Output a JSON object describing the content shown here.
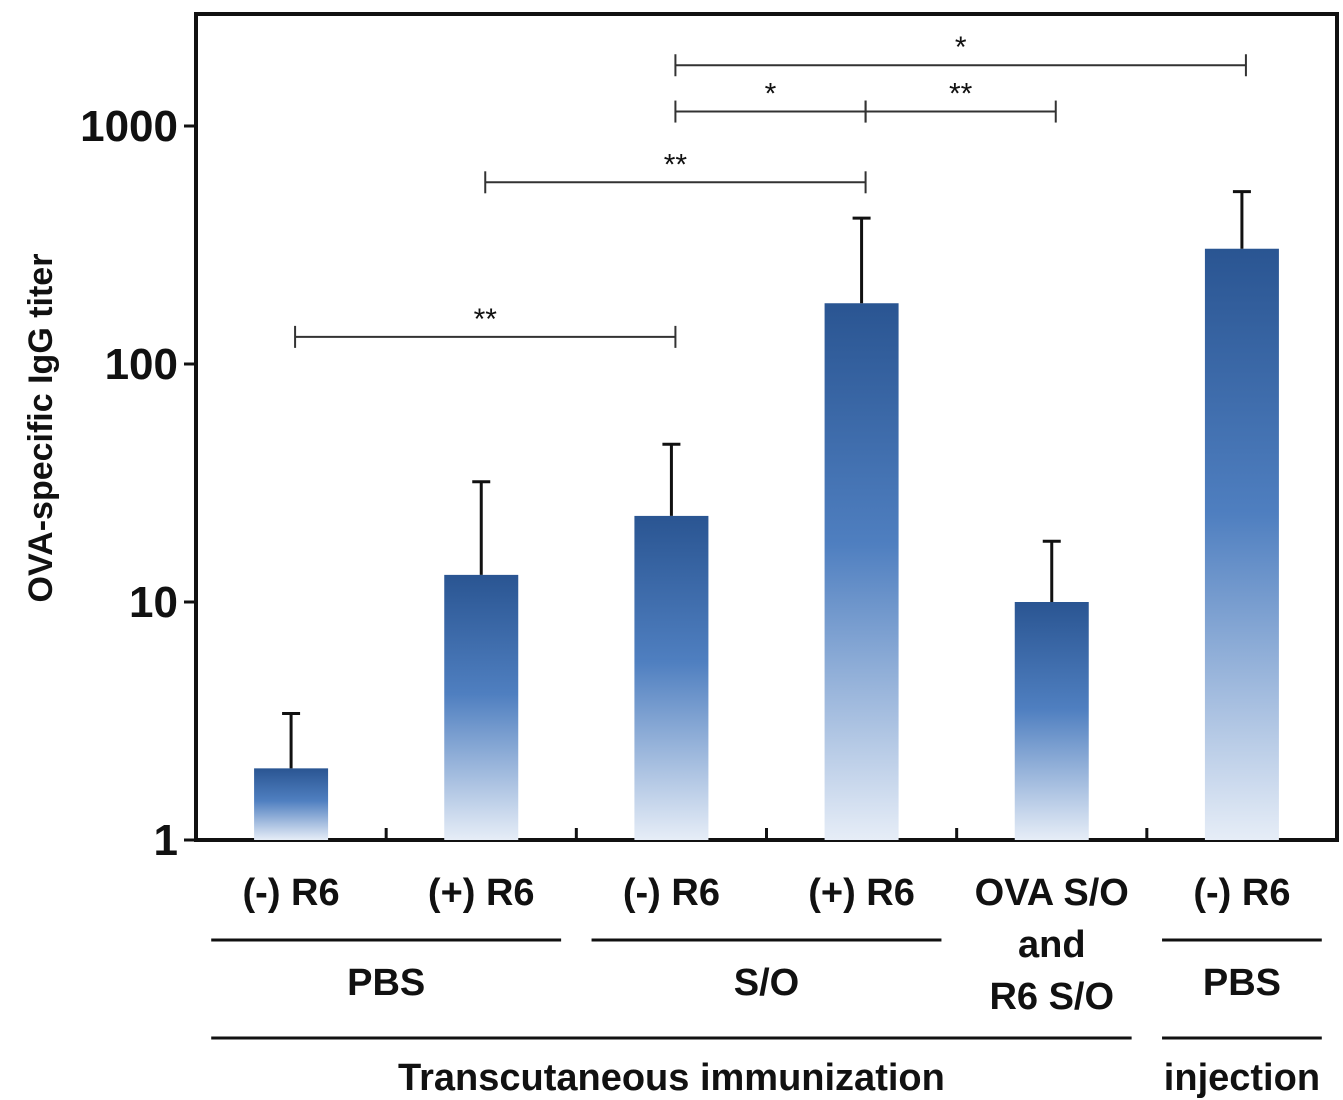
{
  "chart_data": {
    "type": "bar",
    "title": "",
    "ylabel": "OVA-specific IgG titer",
    "yscale": "log",
    "ylim": [
      1,
      2500
    ],
    "yticks": [
      "1",
      "10",
      "100",
      "1000"
    ],
    "categories": [
      "(-) R6",
      "(+) R6",
      "(-) R6",
      "(+) R6",
      "OVA S/O and R6 S/O",
      "(-) R6"
    ],
    "category_lines": [
      [
        "(-) R6"
      ],
      [
        "(+) R6"
      ],
      [
        "(-) R6"
      ],
      [
        "(+) R6"
      ],
      [
        "OVA S/O",
        "and",
        "R6 S/O"
      ],
      [
        "(-) R6"
      ]
    ],
    "values": [
      2,
      13,
      23,
      180,
      10,
      305
    ],
    "error_upper": [
      3.4,
      32,
      46,
      410,
      18,
      530
    ],
    "vehicle_groups": [
      {
        "label": "PBS",
        "from": 0,
        "to": 1
      },
      {
        "label": "S/O",
        "from": 2,
        "to": 3
      },
      {
        "label": "PBS",
        "from": 5,
        "to": 5
      }
    ],
    "route_groups": [
      {
        "label": "Transcutaneous immunization",
        "from": 0,
        "to": 4
      },
      {
        "label": "injection",
        "from": 5,
        "to": 5
      }
    ],
    "significance": [
      {
        "from": 0,
        "to": 2,
        "label": "**",
        "y": 130
      },
      {
        "from": 1,
        "to": 3,
        "label": "**",
        "y": 580
      },
      {
        "from": 2,
        "to": 3,
        "label": "*",
        "y": 1150
      },
      {
        "from": 3,
        "to": 4,
        "label": "**",
        "y": 1150
      },
      {
        "from": 2,
        "to": 5,
        "label": "*",
        "y": 1800
      }
    ],
    "bar_color_top": "#2a5592",
    "bar_color_bottom": "#e6edf7",
    "grid": false,
    "legend": "none"
  }
}
